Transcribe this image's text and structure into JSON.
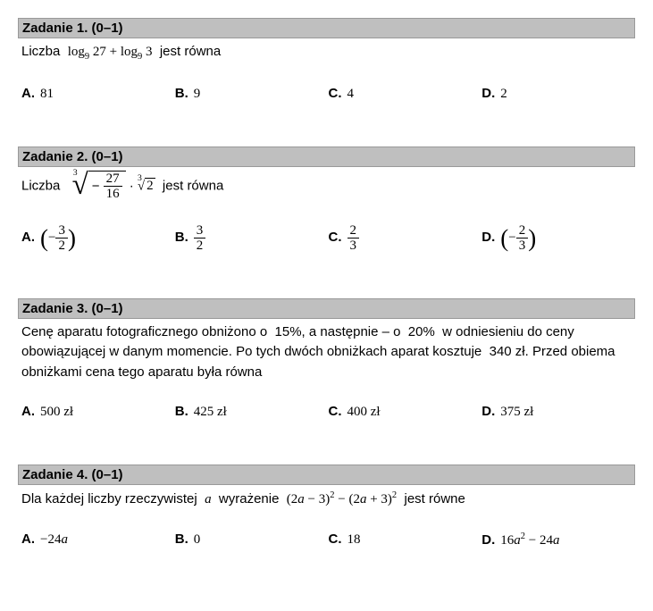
{
  "tasks": [
    {
      "header": "Zadanie 1. (0–1)",
      "body_html": "Liczba &nbsp;<span class='math'>log<sub>9</sub> 27 + log<sub>9</sub> 3</span>&nbsp; jest równa",
      "options": [
        {
          "label": "A.",
          "value": "81"
        },
        {
          "label": "B.",
          "value": "9"
        },
        {
          "label": "C.",
          "value": "4"
        },
        {
          "label": "D.",
          "value": "2"
        }
      ]
    },
    {
      "header": "Zadanie 2. (0–1)",
      "body_html": "Liczba &nbsp;<span class='big-sqrt'><span class='deg'>3</span><span class='radsign'>&#8730;</span><span class='rad'>&minus;&nbsp;<span class='frac'><span class='num'>27</span><span class='den'>16</span></span></span></span> &middot; <span class='root3'>3</span><span style='font-family:Times New Roman,serif;'>&#8730;<span style='border-top:1px solid #000;padding:0 2px;'>2</span></span>&nbsp; jest równa",
      "options": [
        {
          "label": "A.",
          "value": "<span class='paren-big'>(</span>&minus;<span class='frac'><span class='num'>3</span><span class='den'>2</span></span><span class='paren-big'>)</span>"
        },
        {
          "label": "B.",
          "value": "<span class='frac'><span class='num'>3</span><span class='den'>2</span></span>"
        },
        {
          "label": "C.",
          "value": "<span class='frac'><span class='num'>2</span><span class='den'>3</span></span>"
        },
        {
          "label": "D.",
          "value": "<span class='paren-big'>(</span>&minus;<span class='frac'><span class='num'>2</span><span class='den'>3</span></span><span class='paren-big'>)</span>"
        }
      ]
    },
    {
      "header": "Zadanie 3. (0–1)",
      "body_html": "Cenę aparatu fotograficznego obniżono o &nbsp;15%, a następnie – o &nbsp;20% &nbsp;w odniesieniu do ceny obowiązującej w danym momencie. Po tych dwóch obniżkach aparat kosztuje &nbsp;340 zł. Przed obiema obniżkami cena tego aparatu była równa",
      "options": [
        {
          "label": "A.",
          "value": "500 zł"
        },
        {
          "label": "B.",
          "value": "425 zł"
        },
        {
          "label": "C.",
          "value": "400 zł"
        },
        {
          "label": "D.",
          "value": "375 zł"
        }
      ]
    },
    {
      "header": "Zadanie 4. (0–1)",
      "body_html": "Dla każdej liczby rzeczywistej &nbsp;<span class='italic-a'>a</span>&nbsp; wyrażenie &nbsp;<span class='math'>(2<span class='italic-a'>a</span> &minus; 3)<sup>2</sup> &minus; (2<span class='italic-a'>a</span> + 3)<sup>2</sup></span>&nbsp; jest równe",
      "options": [
        {
          "label": "A.",
          "value": "&minus;24<span class='italic-a'>a</span>"
        },
        {
          "label": "B.",
          "value": "0"
        },
        {
          "label": "C.",
          "value": "18"
        },
        {
          "label": "D.",
          "value": "16<span class='italic-a'>a</span><sup>2</sup> &minus; 24<span class='italic-a'>a</span>"
        }
      ]
    }
  ]
}
